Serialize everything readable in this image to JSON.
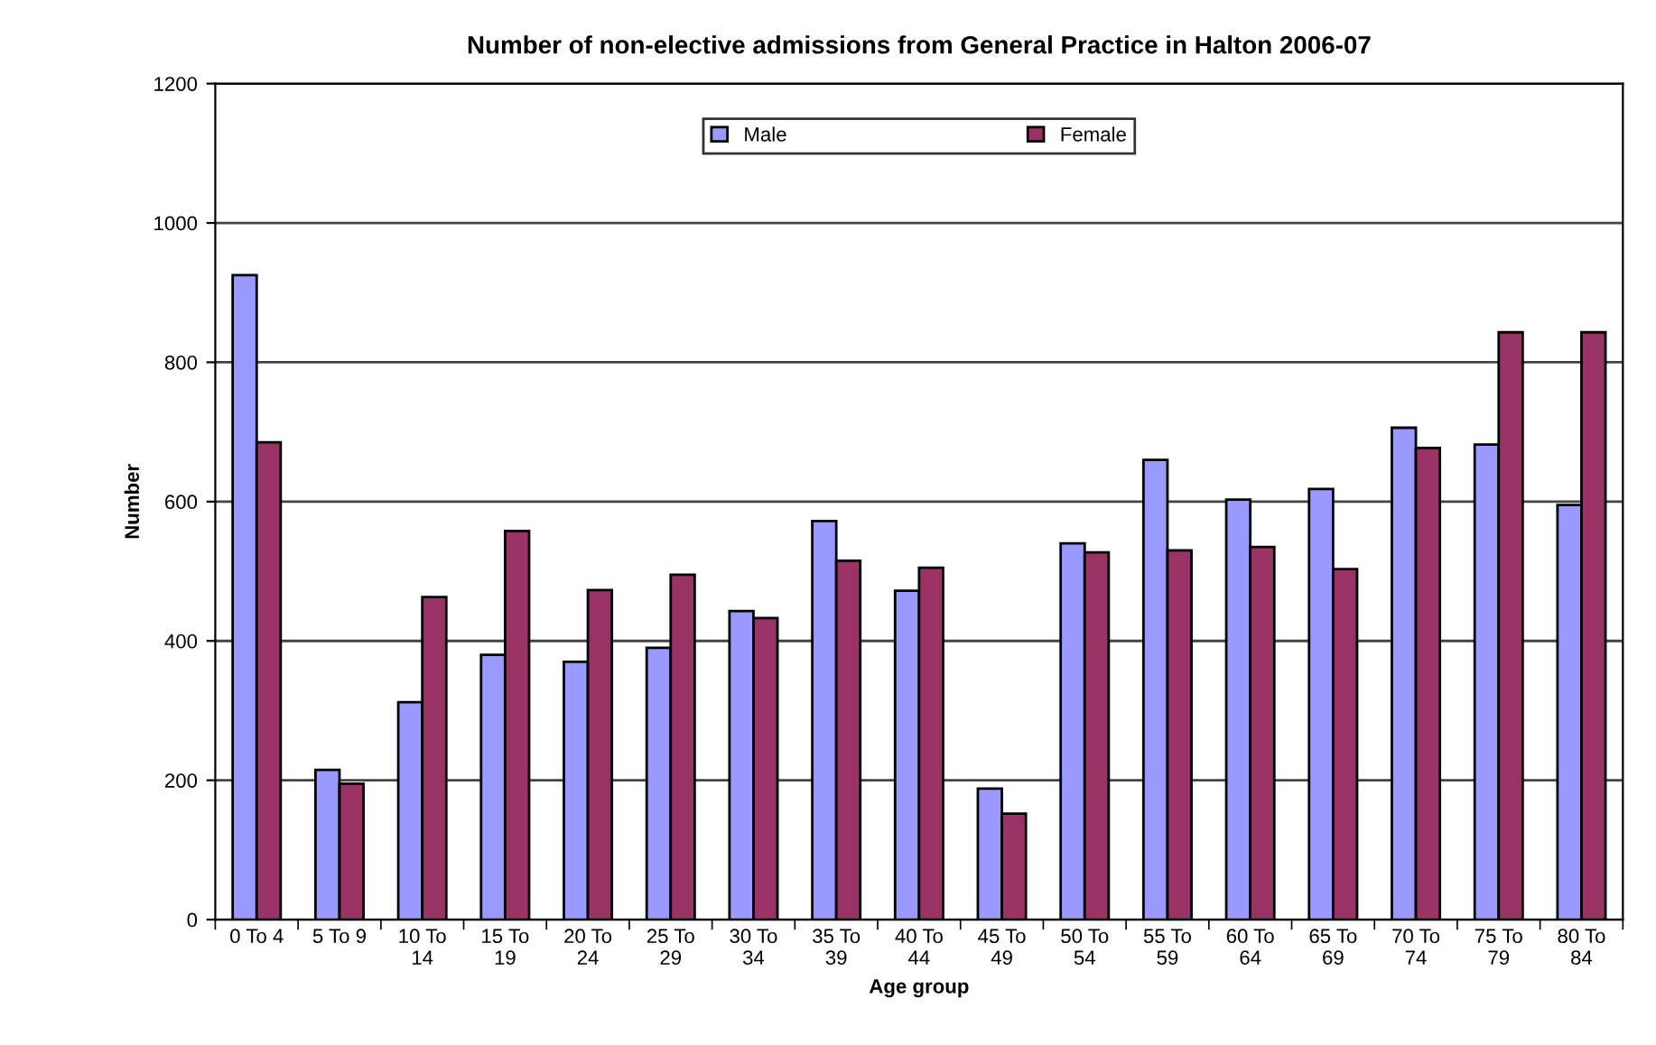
{
  "chart_data": {
    "type": "bar",
    "title": "Number of non-elective admissions from General Practice in Halton 2006-07",
    "xlabel": "Age group",
    "ylabel": "Number",
    "categories": [
      "0 To 4",
      "5 To 9",
      "10 To\n14",
      "15 To\n19",
      "20 To\n24",
      "25 To\n29",
      "30 To\n34",
      "35 To\n39",
      "40 To\n44",
      "45 To\n49",
      "50 To\n54",
      "55 To\n59",
      "60 To\n64",
      "65 To\n69",
      "70 To\n74",
      "75 To\n79",
      "80 To\n84"
    ],
    "series": [
      {
        "name": "Male",
        "color": "#9999ff",
        "values": [
          925,
          215,
          312,
          380,
          370,
          390,
          443,
          572,
          472,
          188,
          540,
          660,
          603,
          618,
          706,
          682,
          595
        ]
      },
      {
        "name": "Female",
        "color": "#993366",
        "values": [
          685,
          195,
          463,
          558,
          473,
          495,
          433,
          515,
          505,
          152,
          527,
          530,
          535,
          503,
          677,
          843,
          843
        ]
      }
    ],
    "ylim": [
      0,
      1200
    ],
    "yticks": [
      0,
      200,
      400,
      600,
      800,
      1000,
      1200
    ],
    "grid": "y",
    "legend": "top"
  }
}
